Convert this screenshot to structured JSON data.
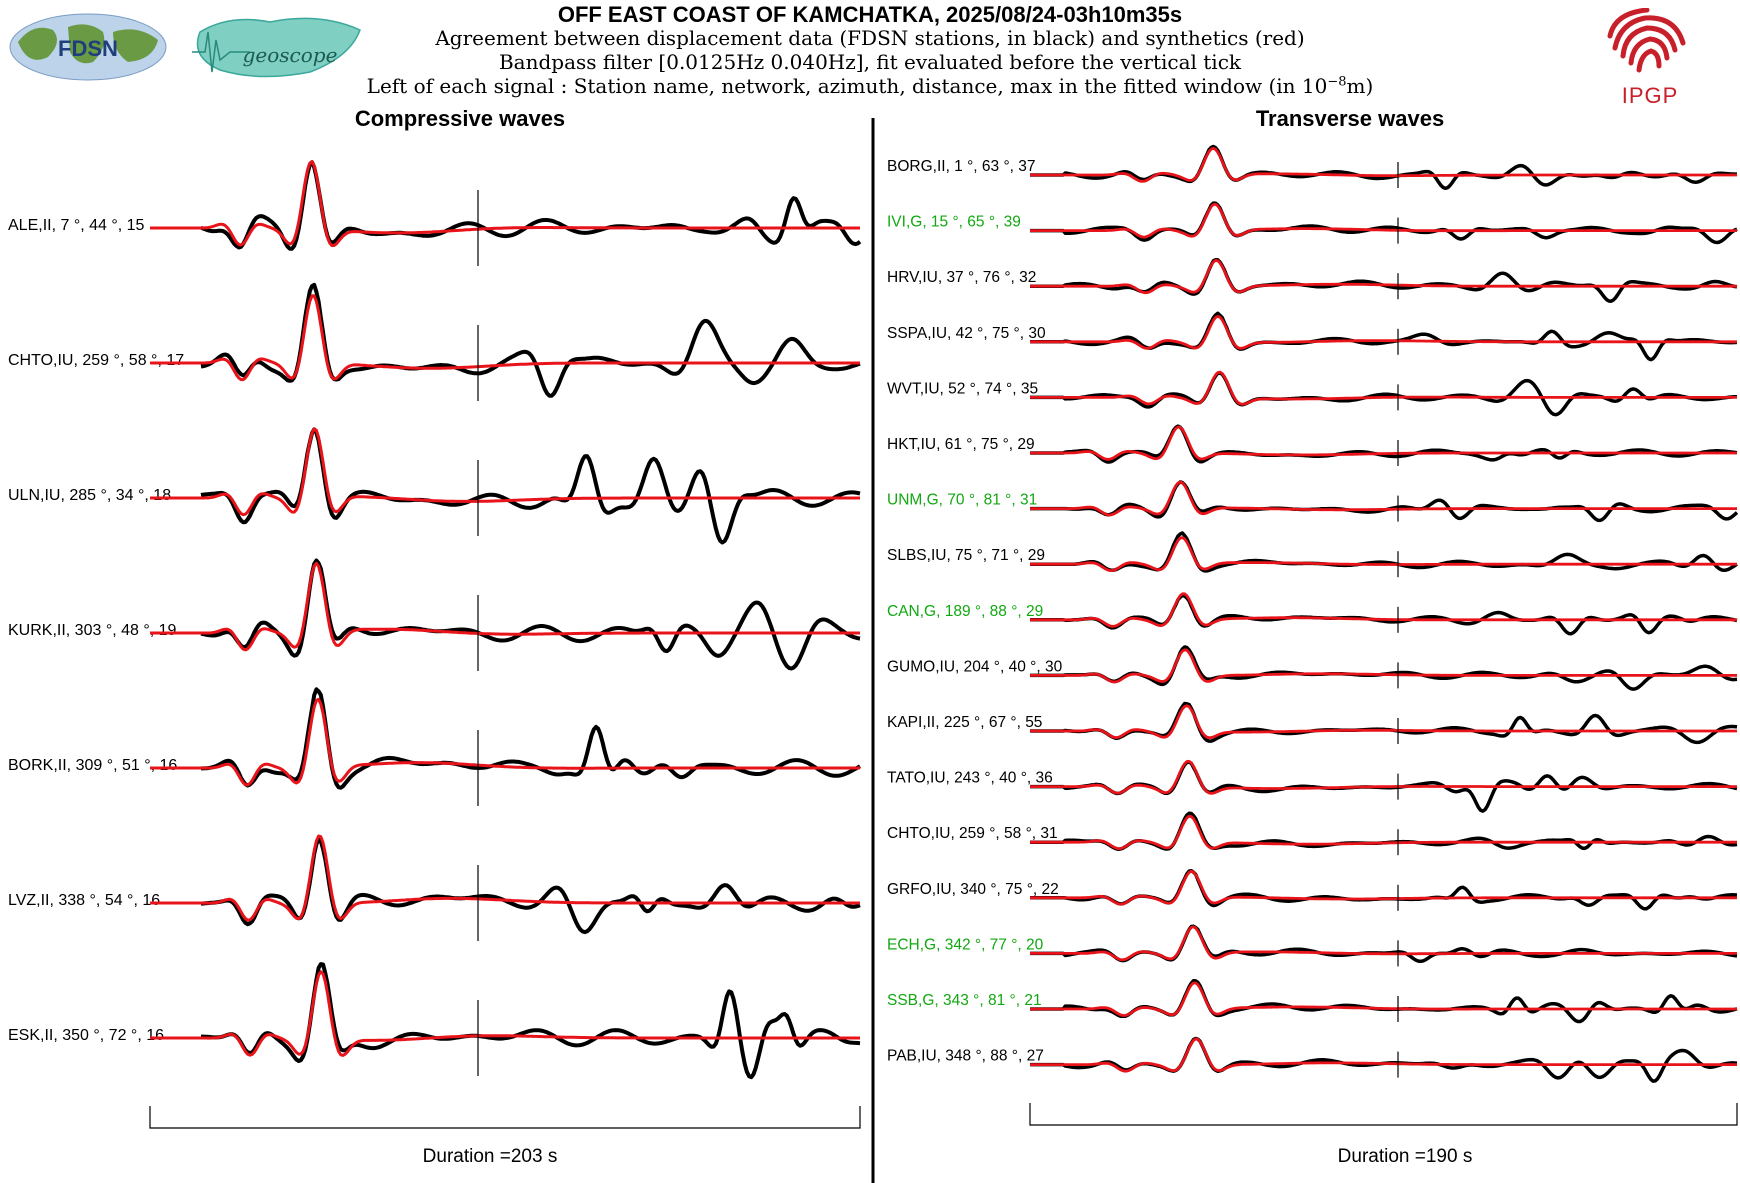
{
  "header": {
    "title": "OFF EAST COAST OF KAMCHATKA, 2025/08/24-03h10m35s",
    "line1": "Agreement between displacement data (FDSN stations, in black) and synthetics (red)",
    "line2": "Bandpass filter [0.0125Hz 0.040Hz], fit evaluated before the vertical tick",
    "line3_prefix": "Left of each signal : Station name, network, azimuth, distance, max in the fitted window (in 10",
    "line3_exp": "−8",
    "line3_suffix": "m)"
  },
  "logos": {
    "fdsn": "FDSN",
    "geoscope": "geoscope",
    "ipgp": "IPGP"
  },
  "colors": {
    "data": "#000000",
    "synthetic": "#e8141a",
    "highlight_station": "#11a811",
    "ipgp_red": "#c8202a",
    "fdsn_blue": "#2e6fb7",
    "geoscope_teal": "#3aa89a"
  },
  "chart_data": [
    {
      "type": "line",
      "title": "Compressive waves",
      "duration_label": "Duration =203 s",
      "legend": [
        {
          "name": "data",
          "color": "#000000"
        },
        {
          "name": "synthetics",
          "color": "#e8141a"
        }
      ],
      "stations": [
        {
          "label": "ALE,II, 7 °, 44 °, 15",
          "highlight": false
        },
        {
          "label": "CHTO,IU, 259 °, 58 °, 17",
          "highlight": false
        },
        {
          "label": "ULN,IU, 285 °, 34 °, 18",
          "highlight": false
        },
        {
          "label": "KURK,II, 303 °, 48 °, 19",
          "highlight": false
        },
        {
          "label": "BORK,II, 309 °, 51 °, 16",
          "highlight": false
        },
        {
          "label": "LVZ,II, 338 °, 54 °, 16",
          "highlight": false
        },
        {
          "label": "ESK,II, 350 °, 72 °, 16",
          "highlight": false
        }
      ]
    },
    {
      "type": "line",
      "title": "Transverse waves",
      "duration_label": "Duration =190 s",
      "stations": [
        {
          "label": "BORG,II, 1 °, 63 °, 37",
          "highlight": false
        },
        {
          "label": "IVI,G, 15 °, 65 °, 39",
          "highlight": true
        },
        {
          "label": "HRV,IU, 37 °, 76 °, 32",
          "highlight": false
        },
        {
          "label": "SSPA,IU, 42 °, 75 °, 30",
          "highlight": false
        },
        {
          "label": "WVT,IU, 52 °, 74 °, 35",
          "highlight": false
        },
        {
          "label": "HKT,IU, 61 °, 75 °, 29",
          "highlight": false
        },
        {
          "label": "UNM,G, 70 °, 81 °, 31",
          "highlight": true
        },
        {
          "label": "SLBS,IU, 75 °, 71 °, 29",
          "highlight": false
        },
        {
          "label": "CAN,G, 189 °, 88 °, 29",
          "highlight": true
        },
        {
          "label": "GUMO,IU, 204 °, 40 °, 30",
          "highlight": false
        },
        {
          "label": "KAPI,II, 225 °, 67 °, 55",
          "highlight": false
        },
        {
          "label": "TATO,IU, 243 °, 40 °, 36",
          "highlight": false
        },
        {
          "label": "CHTO,IU, 259 °, 58 °, 31",
          "highlight": false
        },
        {
          "label": "GRFO,IU, 340 °, 75 °, 22",
          "highlight": false
        },
        {
          "label": "ECH,G, 342 °, 77 °, 20",
          "highlight": true
        },
        {
          "label": "SSB,G, 343 °, 81 °, 21",
          "highlight": true
        },
        {
          "label": "PAB,IU, 348 °, 88 °, 27",
          "highlight": false
        }
      ]
    }
  ]
}
